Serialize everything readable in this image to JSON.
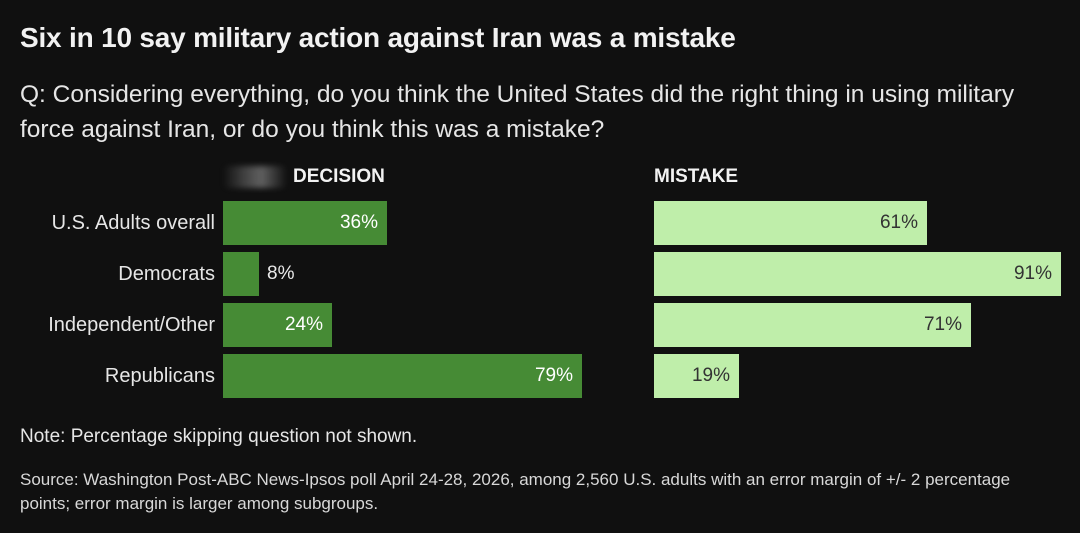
{
  "title": "Six in 10 say military action against Iran was a mistake",
  "question": "Q: Considering everything, do you think the United States did the right thing in using military force against Iran, or do you think this was a mistake?",
  "note": "Note: Percentage skipping question not shown.",
  "source": "Source: Washington Post-ABC News-Ipsos poll April 24-28, 2026, among 2,560 U.S. adults with an error margin of +/- 2 percentage points; error margin is larger among subgroups.",
  "colors": {
    "decision": "#468b35",
    "mistake": "#bfeeaa",
    "background": "#101010"
  },
  "chart_data": {
    "type": "bar",
    "orientation": "horizontal",
    "categories": [
      "U.S. Adults overall",
      "Democrats",
      "Independent/Other",
      "Republicans"
    ],
    "series": [
      {
        "name": "DECISION",
        "values": [
          36,
          8,
          24,
          79
        ],
        "labels": [
          "36%",
          "8%",
          "24%",
          "79%"
        ]
      },
      {
        "name": "MISTAKE",
        "values": [
          61,
          91,
          71,
          19
        ],
        "labels": [
          "61%",
          "91%",
          "71%",
          "19%"
        ]
      }
    ],
    "unit": "%",
    "xlim": [
      0,
      100
    ],
    "legend": "column headers above bars"
  }
}
